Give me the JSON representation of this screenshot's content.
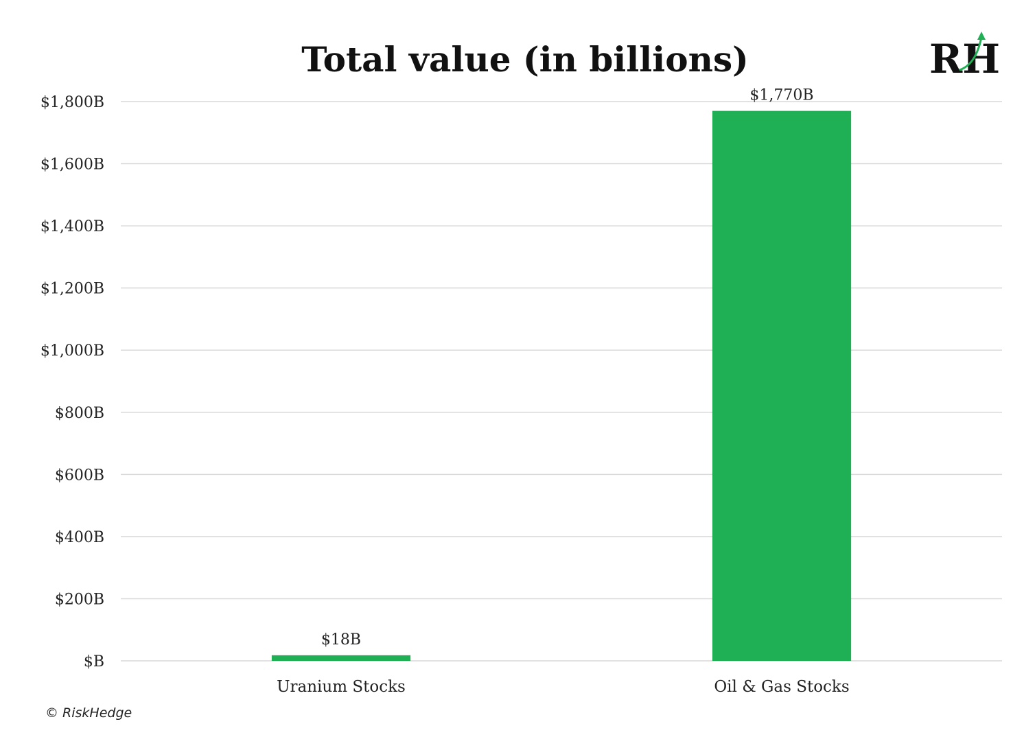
{
  "chart_data": {
    "type": "bar",
    "title": "Total value (in billions)",
    "categories": [
      "Uranium Stocks",
      "Oil & Gas Stocks"
    ],
    "values": [
      18,
      1770
    ],
    "data_labels": [
      "$18B",
      "$1,770B"
    ],
    "xlabel": "",
    "ylabel": "",
    "ylim": [
      0,
      1800
    ],
    "y_ticks": [
      0,
      200,
      400,
      600,
      800,
      1000,
      1200,
      1400,
      1600,
      1800
    ],
    "y_tick_labels": [
      "$B",
      "$200B",
      "$400B",
      "$600B",
      "$800B",
      "$1,000B",
      "$1,200B",
      "$1,400B",
      "$1,600B",
      "$1,800B"
    ],
    "grid": true,
    "legend": "none",
    "bar_color": "#1faf54"
  },
  "logo": {
    "text": "RH",
    "icon": "upward-arrow-icon",
    "accent_color": "#1faf54"
  },
  "footer": {
    "copyright": "© RiskHedge"
  }
}
